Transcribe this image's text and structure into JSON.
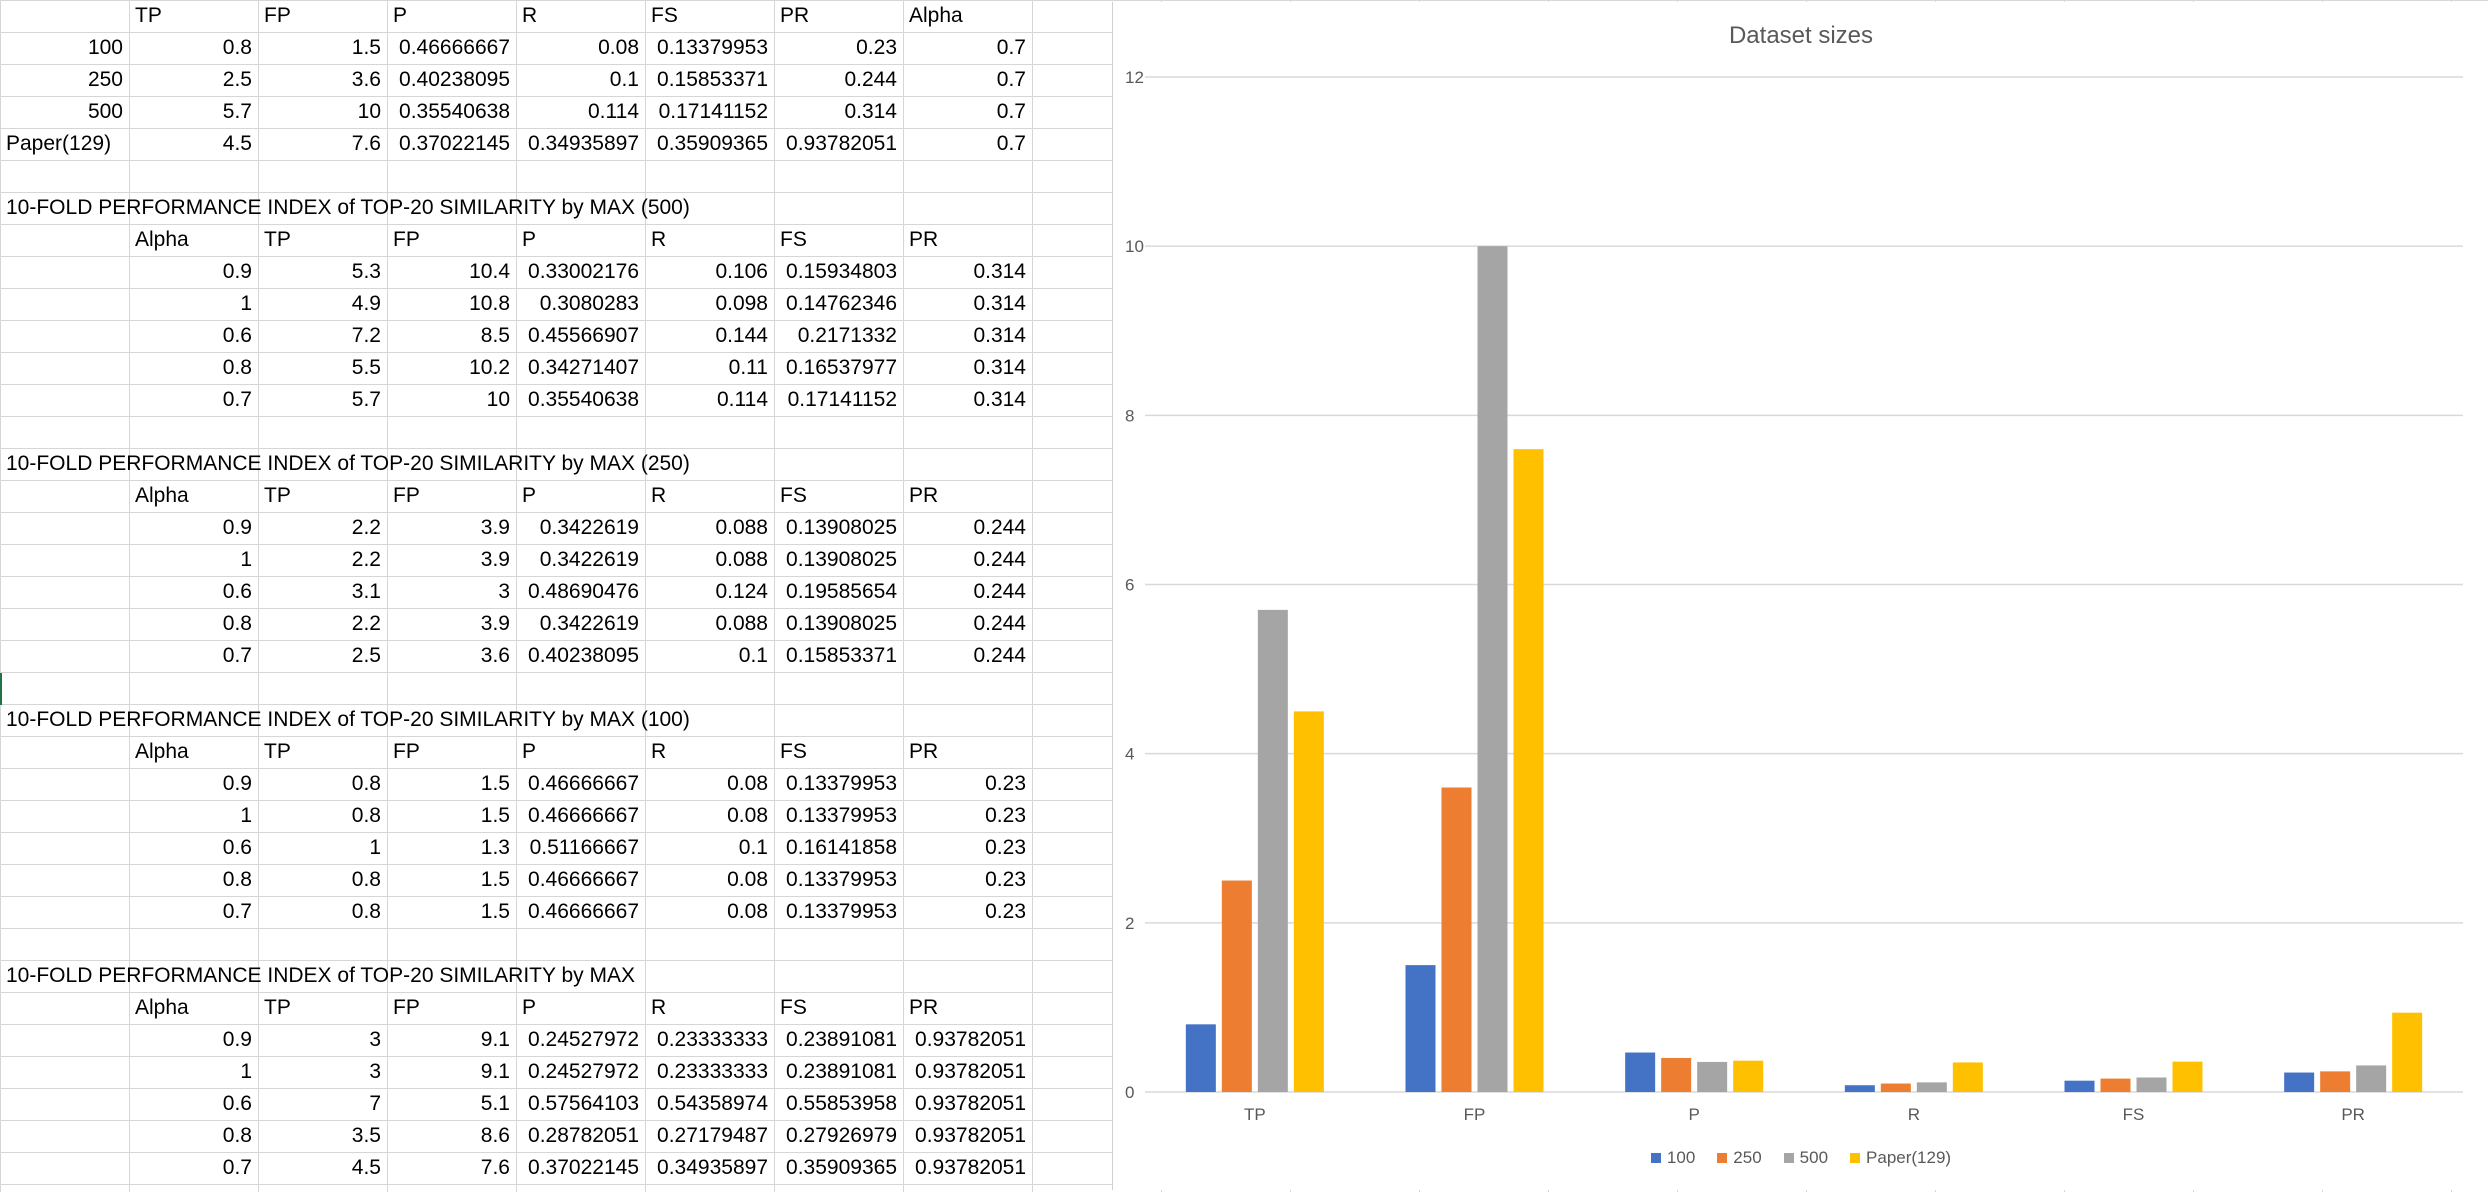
{
  "summary": {
    "headers": [
      "TP",
      "FP",
      "P",
      "R",
      "FS",
      "PR",
      "Alpha"
    ],
    "rows": [
      [
        "100",
        "0.8",
        "1.5",
        "0.46666667",
        "0.08",
        "0.13379953",
        "0.23",
        "0.7"
      ],
      [
        "250",
        "2.5",
        "3.6",
        "0.40238095",
        "0.1",
        "0.15853371",
        "0.244",
        "0.7"
      ],
      [
        "500",
        "5.7",
        "10",
        "0.35540638",
        "0.114",
        "0.17141152",
        "0.314",
        "0.7"
      ],
      [
        "Paper(129)",
        "4.5",
        "7.6",
        "0.37022145",
        "0.34935897",
        "0.35909365",
        "0.93782051",
        "0.7"
      ]
    ]
  },
  "sections": [
    {
      "title": "10-FOLD PERFORMANCE INDEX of TOP-20 SIMILARITY by MAX (500)",
      "headers": [
        "Alpha",
        "TP",
        "FP",
        "P",
        "R",
        "FS",
        "PR"
      ],
      "rows": [
        [
          "0.9",
          "5.3",
          "10.4",
          "0.33002176",
          "0.106",
          "0.15934803",
          "0.314"
        ],
        [
          "1",
          "4.9",
          "10.8",
          "0.3080283",
          "0.098",
          "0.14762346",
          "0.314"
        ],
        [
          "0.6",
          "7.2",
          "8.5",
          "0.45566907",
          "0.144",
          "0.2171332",
          "0.314"
        ],
        [
          "0.8",
          "5.5",
          "10.2",
          "0.34271407",
          "0.11",
          "0.16537977",
          "0.314"
        ],
        [
          "0.7",
          "5.7",
          "10",
          "0.35540638",
          "0.114",
          "0.17141152",
          "0.314"
        ]
      ]
    },
    {
      "title": "10-FOLD PERFORMANCE INDEX of TOP-20 SIMILARITY by MAX (250)",
      "headers": [
        "Alpha",
        "TP",
        "FP",
        "P",
        "R",
        "FS",
        "PR"
      ],
      "rows": [
        [
          "0.9",
          "2.2",
          "3.9",
          "0.3422619",
          "0.088",
          "0.13908025",
          "0.244"
        ],
        [
          "1",
          "2.2",
          "3.9",
          "0.3422619",
          "0.088",
          "0.13908025",
          "0.244"
        ],
        [
          "0.6",
          "3.1",
          "3",
          "0.48690476",
          "0.124",
          "0.19585654",
          "0.244"
        ],
        [
          "0.8",
          "2.2",
          "3.9",
          "0.3422619",
          "0.088",
          "0.13908025",
          "0.244"
        ],
        [
          "0.7",
          "2.5",
          "3.6",
          "0.40238095",
          "0.1",
          "0.15853371",
          "0.244"
        ]
      ]
    },
    {
      "title": "10-FOLD PERFORMANCE INDEX of TOP-20 SIMILARITY by MAX (100)",
      "headers": [
        "Alpha",
        "TP",
        "FP",
        "P",
        "R",
        "FS",
        "PR"
      ],
      "rows": [
        [
          "0.9",
          "0.8",
          "1.5",
          "0.46666667",
          "0.08",
          "0.13379953",
          "0.23"
        ],
        [
          "1",
          "0.8",
          "1.5",
          "0.46666667",
          "0.08",
          "0.13379953",
          "0.23"
        ],
        [
          "0.6",
          "1",
          "1.3",
          "0.51166667",
          "0.1",
          "0.16141858",
          "0.23"
        ],
        [
          "0.8",
          "0.8",
          "1.5",
          "0.46666667",
          "0.08",
          "0.13379953",
          "0.23"
        ],
        [
          "0.7",
          "0.8",
          "1.5",
          "0.46666667",
          "0.08",
          "0.13379953",
          "0.23"
        ]
      ]
    },
    {
      "title": "10-FOLD PERFORMANCE INDEX of TOP-20 SIMILARITY by MAX",
      "headers": [
        "Alpha",
        "TP",
        "FP",
        "P",
        "R",
        "FS",
        "PR"
      ],
      "rows": [
        [
          "0.9",
          "3",
          "9.1",
          "0.24527972",
          "0.23333333",
          "0.23891081",
          "0.93782051"
        ],
        [
          "1",
          "3",
          "9.1",
          "0.24527972",
          "0.23333333",
          "0.23891081",
          "0.93782051"
        ],
        [
          "0.6",
          "7",
          "5.1",
          "0.57564103",
          "0.54358974",
          "0.55853958",
          "0.93782051"
        ],
        [
          "0.8",
          "3.5",
          "8.6",
          "0.28782051",
          "0.27179487",
          "0.27926979",
          "0.93782051"
        ],
        [
          "0.7",
          "4.5",
          "7.6",
          "0.37022145",
          "0.34935897",
          "0.35909365",
          "0.93782051"
        ]
      ]
    }
  ],
  "chart_data": {
    "type": "bar",
    "title": "Dataset sizes",
    "categories": [
      "TP",
      "FP",
      "P",
      "R",
      "FS",
      "PR"
    ],
    "series": [
      {
        "name": "100",
        "color": "#4472C4",
        "values": [
          0.8,
          1.5,
          0.46666667,
          0.08,
          0.13379953,
          0.23
        ]
      },
      {
        "name": "250",
        "color": "#ED7D31",
        "values": [
          2.5,
          3.6,
          0.40238095,
          0.1,
          0.15853371,
          0.244
        ]
      },
      {
        "name": "500",
        "color": "#A5A5A5",
        "values": [
          5.7,
          10,
          0.35540638,
          0.114,
          0.17141152,
          0.314
        ]
      },
      {
        "name": "Paper(129)",
        "color": "#FFC000",
        "values": [
          4.5,
          7.6,
          0.37022145,
          0.34935897,
          0.35909365,
          0.93782051
        ]
      }
    ],
    "yticks": [
      "0",
      "2",
      "4",
      "6",
      "8",
      "10",
      "12"
    ],
    "ylim": [
      0,
      12
    ],
    "grid": true,
    "legend_position": "bottom"
  }
}
